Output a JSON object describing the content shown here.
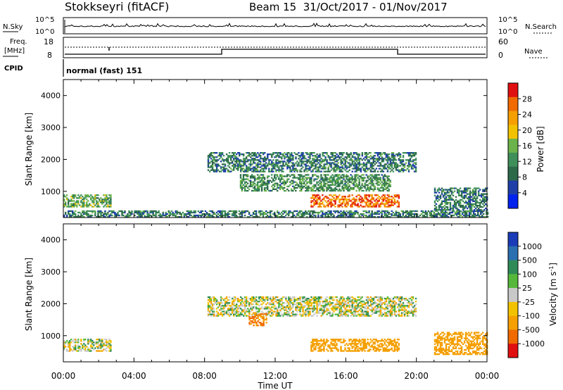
{
  "header": {
    "title": "Stokkseyri (fitACF)",
    "beam_info": "Beam 15  31/Oct/2017 - 01/Nov/2017"
  },
  "top_panels": {
    "nsky_label": "N.Sky",
    "nsky_ticks": [
      "10^5",
      "10^0"
    ],
    "nsky_right_ticks": [
      "10^5",
      "10^0"
    ],
    "nsearch_label": "N.Search",
    "freq_label_1": "Freq.",
    "freq_label_2": "[MHz]",
    "freq_ticks": [
      "18",
      "8"
    ],
    "nave_ticks": [
      "60",
      "0"
    ],
    "nave_label": "Nave",
    "cpid_label": "CPID",
    "cpid_value": "normal (fast) 151"
  },
  "colors": {
    "power_scale": [
      "#0022ee",
      "#1e3fa8",
      "#2d6a4a",
      "#3f8f5a",
      "#6bb34a",
      "#f2c200",
      "#f59f00",
      "#f06a00",
      "#e01010"
    ],
    "velocity_scale": [
      "#1a3cb8",
      "#2a6fb0",
      "#2e8b57",
      "#56b83a",
      "#c8c8c8",
      "#f2c200",
      "#f59f00",
      "#f06a00",
      "#e01010"
    ]
  },
  "chart_data": [
    {
      "type": "heatmap",
      "panel": "power",
      "ylabel": "Slant Range [km]",
      "ylim": [
        180,
        4500
      ],
      "yticks": [
        "1000",
        "2000",
        "3000",
        "4000"
      ],
      "xticks": [
        "00:00",
        "04:00",
        "08:00",
        "12:00",
        "16:00",
        "20:00",
        "00:00"
      ],
      "colorbar": {
        "label": "Power [dB]",
        "ticks": [
          "28",
          "24",
          "20",
          "16",
          "12",
          "8",
          "4"
        ]
      },
      "echo_regions": [
        {
          "t_start": "00:00",
          "t_end": "02:40",
          "range_km": [
            500,
            900
          ],
          "power_db": 14
        },
        {
          "t_start": "00:00",
          "t_end": "24:00",
          "range_km": [
            180,
            400
          ],
          "power_db": 10
        },
        {
          "t_start": "08:10",
          "t_end": "20:00",
          "range_km": [
            1600,
            2200
          ],
          "power_db": 10
        },
        {
          "t_start": "10:00",
          "t_end": "18:30",
          "range_km": [
            1000,
            1500
          ],
          "power_db": 12
        },
        {
          "t_start": "14:00",
          "t_end": "19:00",
          "range_km": [
            500,
            900
          ],
          "power_db": 26
        },
        {
          "t_start": "21:00",
          "t_end": "24:00",
          "range_km": [
            400,
            1100
          ],
          "power_db": 10
        }
      ]
    },
    {
      "type": "heatmap",
      "panel": "velocity",
      "ylabel": "Slant Range [km]",
      "xlabel": "Time UT",
      "ylim": [
        180,
        4500
      ],
      "yticks": [
        "1000",
        "2000",
        "3000",
        "4000"
      ],
      "xticks": [
        "00:00",
        "04:00",
        "08:00",
        "12:00",
        "16:00",
        "20:00",
        "00:00"
      ],
      "colorbar": {
        "label": "Velocity [m s^-1]",
        "ticks": [
          "1000",
          "500",
          "100",
          "25",
          "-25",
          "-100",
          "-500",
          "-1000"
        ]
      },
      "echo_regions": [
        {
          "t_start": "00:00",
          "t_end": "02:40",
          "range_km": [
            500,
            900
          ],
          "velocity_ms": 0
        },
        {
          "t_start": "08:10",
          "t_end": "20:00",
          "range_km": [
            1600,
            2200
          ],
          "velocity_ms": 0
        },
        {
          "t_start": "10:30",
          "t_end": "11:30",
          "range_km": [
            1300,
            1700
          ],
          "velocity_ms": -300
        },
        {
          "t_start": "14:00",
          "t_end": "19:00",
          "range_km": [
            500,
            900
          ],
          "velocity_ms": -150
        },
        {
          "t_start": "21:00",
          "t_end": "24:00",
          "range_km": [
            400,
            1100
          ],
          "velocity_ms": -200
        }
      ]
    }
  ]
}
